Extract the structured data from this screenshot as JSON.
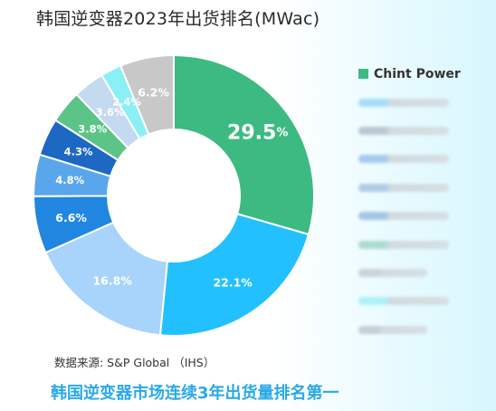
{
  "title": "韩国逆变器2023年出货排名(MWac)",
  "source": "数据来源: S&P Global （IHS）",
  "footer": "韩国逆变器市场连续3年出货量排名第一",
  "chart_data": {
    "type": "pie",
    "title": "韩国逆变器2023年出货排名(MWac)",
    "donut": true,
    "legend_position": "right",
    "slices": [
      {
        "label": "Chint Power",
        "value": 29.5,
        "color": "#3dba82",
        "text": "29.5",
        "unit": "%"
      },
      {
        "label": "",
        "value": 22.1,
        "color": "#22c0ff",
        "text": "22.1%"
      },
      {
        "label": "",
        "value": 16.8,
        "color": "#a8d3fb",
        "text": "16.8%"
      },
      {
        "label": "",
        "value": 6.6,
        "color": "#2186e0",
        "text": "6.6%"
      },
      {
        "label": "",
        "value": 4.8,
        "color": "#5aa6ec",
        "text": "4.8%"
      },
      {
        "label": "",
        "value": 4.3,
        "color": "#1c68c2",
        "text": "4.3%"
      },
      {
        "label": "",
        "value": 3.8,
        "color": "#5cc486",
        "text": "3.8%"
      },
      {
        "label": "",
        "value": 3.6,
        "color": "#c4daf0",
        "text": "3.6%"
      },
      {
        "label": "",
        "value": 2.4,
        "color": "#8bf0f6",
        "text": "2.4%"
      },
      {
        "label": "",
        "value": 6.2,
        "color": "#c8c8c8",
        "text": "6.2%"
      }
    ],
    "legend_blurred_colors": [
      "#8fd4f5",
      "#a8b6c4",
      "#8cbce8",
      "#9bbcdf",
      "#90b4dc",
      "#98d2bc",
      "#c0c6cc",
      "#9aeef6",
      "#b8c0c8"
    ]
  }
}
